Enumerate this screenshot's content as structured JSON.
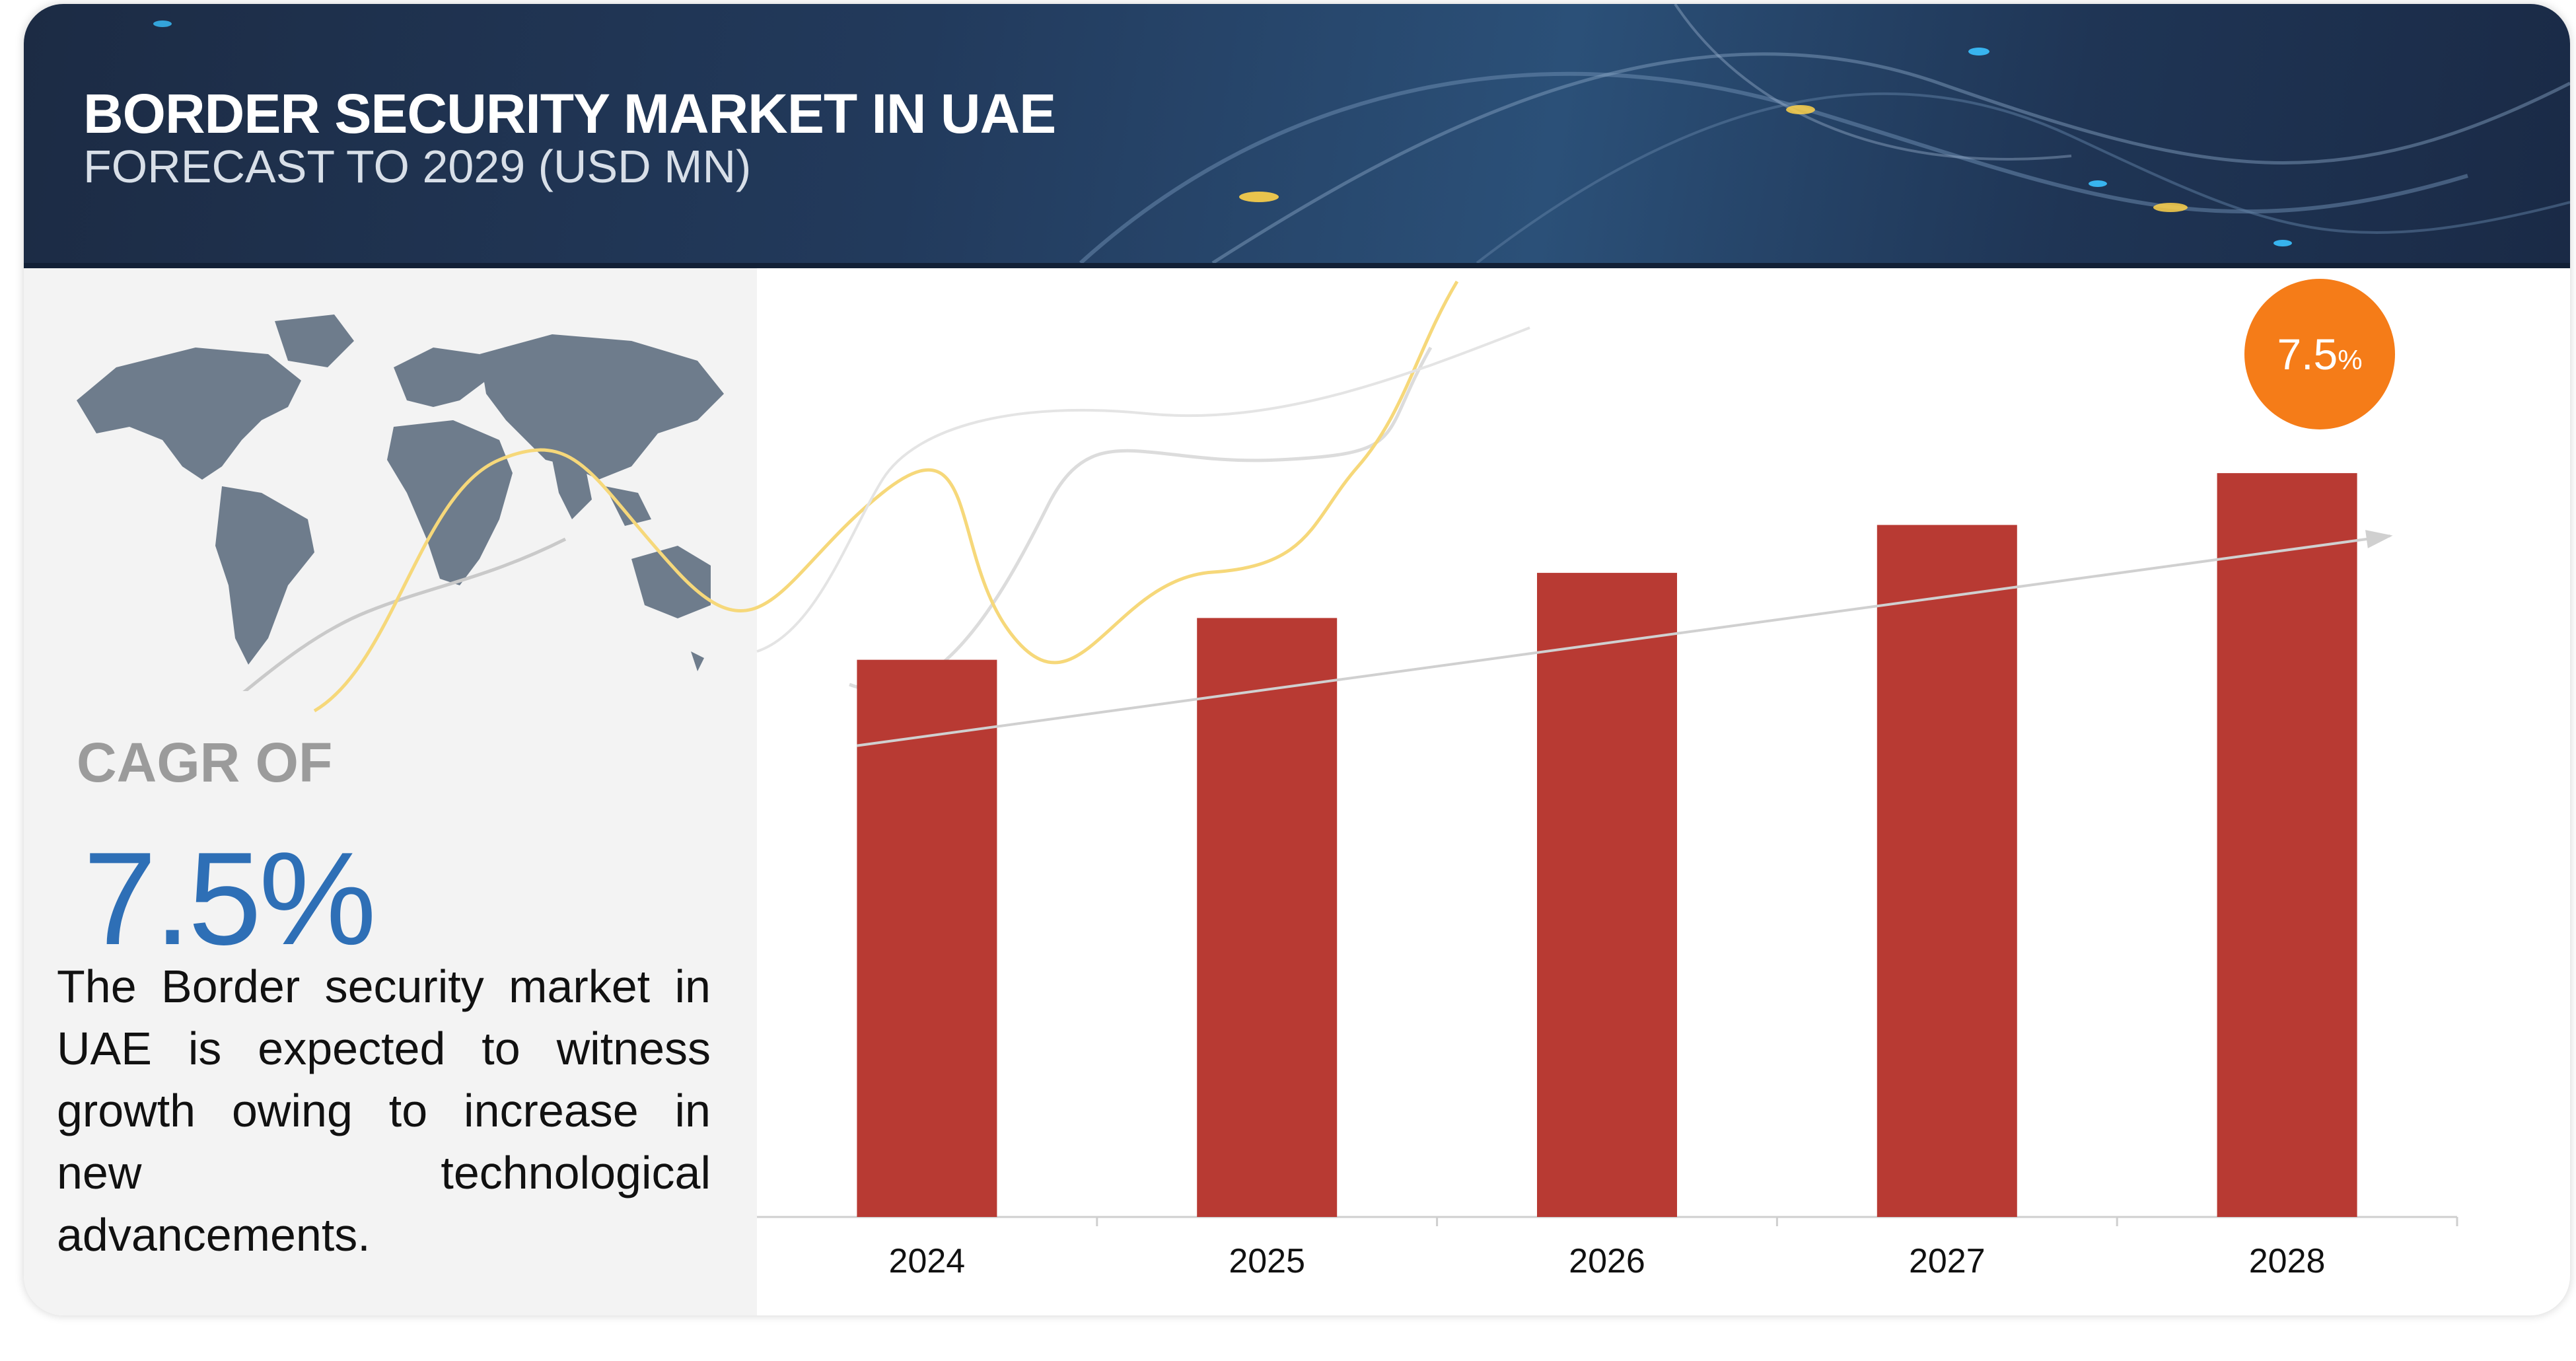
{
  "header": {
    "title": "BORDER SECURITY MARKET IN UAE",
    "subtitle": "FORECAST TO 2029 (USD MN)"
  },
  "summary": {
    "cagr_label": "CAGR OF",
    "cagr_value": "7.5%",
    "description": "The Border security market in UAE is expected to witness growth owing to increase in new technological advancements."
  },
  "badge": {
    "value": "7.5",
    "unit": "%"
  },
  "colors": {
    "bar": "#b83a33",
    "badge": "#f57c18",
    "cagr": "#2e6fb6",
    "header": "#1f3555"
  },
  "icons": [
    "world-map-icon"
  ],
  "chart_data": {
    "type": "bar",
    "categories": [
      "2024",
      "2025",
      "2026",
      "2027",
      "2028"
    ],
    "values": [
      100,
      107.5,
      115.6,
      124.2,
      133.5
    ],
    "ylim": [
      0,
      143
    ],
    "title": "",
    "xlabel": "",
    "ylabel": "",
    "annotation": "7.5%"
  }
}
